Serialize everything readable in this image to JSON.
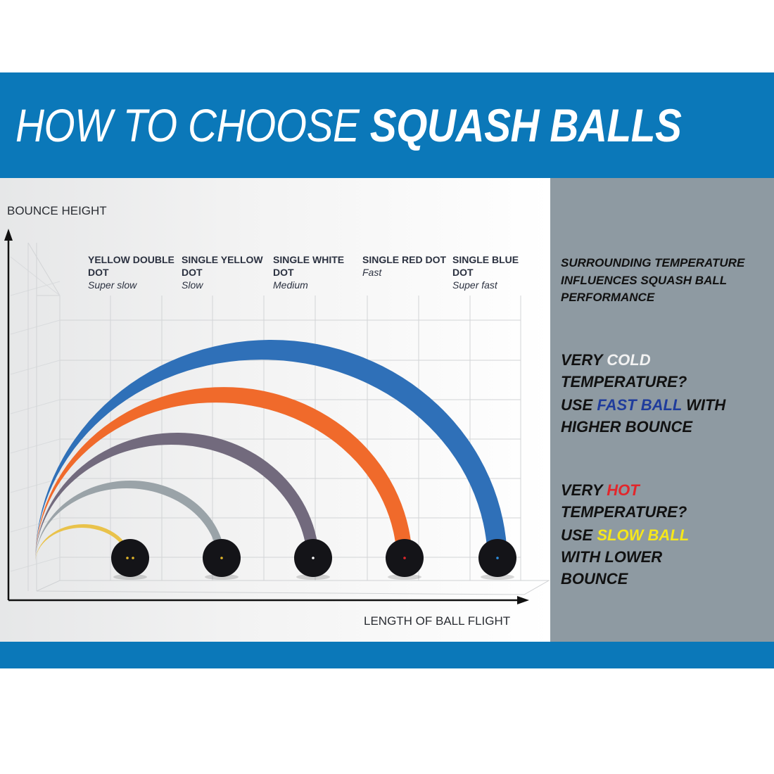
{
  "header": {
    "title_light": "HOW TO CHOOSE",
    "title_bold": "SQUASH BALLS"
  },
  "axes": {
    "y_label": "BOUNCE HEIGHT",
    "x_label": "LENGTH OF BALL FLIGHT"
  },
  "balls": [
    {
      "name": "YELLOW DOUBLE DOT",
      "speed": "Super slow"
    },
    {
      "name": "SINGLE YELLOW DOT",
      "speed": "Slow"
    },
    {
      "name": "SINGLE WHITE DOT",
      "speed": "Medium"
    },
    {
      "name": "SINGLE RED DOT",
      "speed": "Fast"
    },
    {
      "name": "SINGLE BLUE DOT",
      "speed": "Super fast"
    }
  ],
  "panel": {
    "intro": "SURROUNDING TEMPERATURE INFLUENCES SQUASH BALL PERFORMANCE",
    "cold_question": [
      "VERY",
      "COLD",
      "TEMPERATURE?"
    ],
    "cold_answer": [
      "USE",
      "FAST BALL",
      "WITH HIGHER BOUNCE"
    ],
    "hot_question": [
      "VERY",
      "HOT",
      "TEMPERATURE?"
    ],
    "hot_answer": [
      "USE",
      "SLOW BALL",
      "WITH LOWER BOUNCE"
    ]
  }
}
